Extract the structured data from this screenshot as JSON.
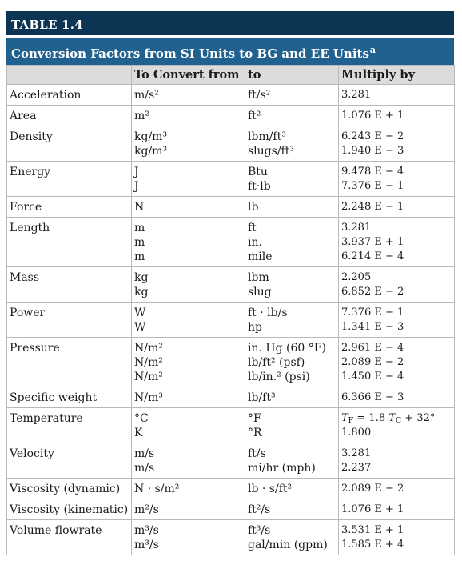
{
  "table_label": "TABLE 1.4",
  "caption": "Conversion Factors from SI Units to BG and EE Units",
  "caption_footnote": "a",
  "columns": [
    "",
    "To Convert from",
    "to",
    "Multiply by"
  ],
  "rows": [
    {
      "quantity": "Acceleration",
      "from": [
        "m/s²"
      ],
      "to": [
        "ft/s²"
      ],
      "factor": [
        "3.281"
      ]
    },
    {
      "quantity": "Area",
      "from": [
        "m²"
      ],
      "to": [
        "ft²"
      ],
      "factor": [
        "1.076 E + 1"
      ]
    },
    {
      "quantity": "Density",
      "from": [
        "kg/m³",
        "kg/m³"
      ],
      "to": [
        "lbm/ft³",
        "slugs/ft³"
      ],
      "factor": [
        "6.243 E − 2",
        "1.940 E − 3"
      ]
    },
    {
      "quantity": "Energy",
      "from": [
        "J",
        "J"
      ],
      "to": [
        "Btu",
        "ft·lb"
      ],
      "factor": [
        "9.478 E − 4",
        "7.376 E − 1"
      ]
    },
    {
      "quantity": "Force",
      "from": [
        "N"
      ],
      "to": [
        "lb"
      ],
      "factor": [
        "2.248 E − 1"
      ]
    },
    {
      "quantity": "Length",
      "from": [
        "m",
        "m",
        "m"
      ],
      "to": [
        "ft",
        "in.",
        "mile"
      ],
      "factor": [
        "3.281",
        "3.937 E + 1",
        "6.214 E − 4"
      ]
    },
    {
      "quantity": "Mass",
      "from": [
        "kg",
        "kg"
      ],
      "to": [
        "lbm",
        "slug"
      ],
      "factor": [
        "2.205",
        "6.852 E − 2"
      ]
    },
    {
      "quantity": "Power",
      "from": [
        "W",
        "W"
      ],
      "to": [
        "ft · lb/s",
        "hp"
      ],
      "factor": [
        "7.376 E − 1",
        "1.341 E − 3"
      ]
    },
    {
      "quantity": "Pressure",
      "from": [
        "N/m²",
        "N/m²",
        "N/m²"
      ],
      "to": [
        "in. Hg (60 °F)",
        "lb/ft² (psf)",
        "lb/in.² (psi)"
      ],
      "factor": [
        "2.961 E − 4",
        "2.089 E − 2",
        "1.450 E − 4"
      ]
    },
    {
      "quantity": "Specific weight",
      "from": [
        "N/m³"
      ],
      "to": [
        "lb/ft³"
      ],
      "factor": [
        "6.366 E − 3"
      ]
    },
    {
      "quantity": "Temperature",
      "from": [
        "°C",
        "K"
      ],
      "to": [
        "°F",
        "°R"
      ],
      "factor": [
        "T_F = 1.8 T_C + 32°",
        "1.800"
      ]
    },
    {
      "quantity": "Velocity",
      "from": [
        "m/s",
        "m/s"
      ],
      "to": [
        "ft/s",
        "mi/hr (mph)"
      ],
      "factor": [
        "3.281",
        "2.237"
      ]
    },
    {
      "quantity": "Viscosity (dynamic)",
      "from": [
        "N · s/m²"
      ],
      "to": [
        "lb · s/ft²"
      ],
      "factor": [
        "2.089 E − 2"
      ]
    },
    {
      "quantity": "Viscosity (kinematic)",
      "from": [
        "m²/s"
      ],
      "to": [
        "ft²/s"
      ],
      "factor": [
        "1.076 E + 1"
      ]
    },
    {
      "quantity": "Volume flowrate",
      "from": [
        "m³/s",
        "m³/s"
      ],
      "to": [
        "ft³/s",
        "gal/min (gpm)"
      ],
      "factor": [
        "3.531 E + 1",
        "1.585 E + 4"
      ]
    }
  ]
}
